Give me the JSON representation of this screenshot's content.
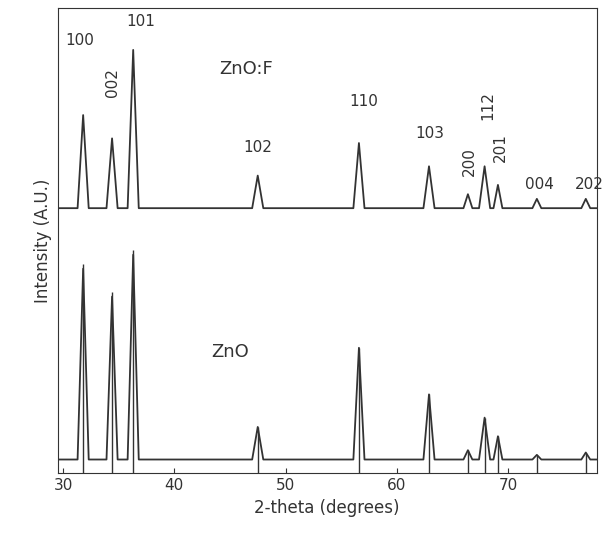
{
  "chart_data": {
    "type": "line",
    "x_label": "2-theta (degrees)",
    "y_label": "Intensity (A.U.)",
    "xlim": [
      29.5,
      78
    ],
    "xticks": [
      30,
      40,
      50,
      60,
      70
    ],
    "ylim": [
      0,
      100
    ],
    "yticks": [],
    "tick_labels": "x",
    "grid": false,
    "x": [
      29.5,
      31.3,
      31.8,
      32.3,
      33.9,
      34.4,
      34.9,
      35.8,
      36.3,
      36.8,
      47.0,
      47.5,
      48.0,
      56.1,
      56.6,
      57.1,
      62.4,
      62.9,
      63.4,
      66.0,
      66.4,
      66.8,
      67.4,
      67.9,
      68.4,
      68.7,
      69.1,
      69.5,
      72.2,
      72.6,
      73.0,
      76.6,
      77.0,
      77.4,
      78
    ],
    "series": [
      {
        "name": "ZnO:F",
        "color": "#333333",
        "values": [
          57,
          57,
          77,
          57,
          57,
          72,
          57,
          57,
          91,
          57,
          57,
          64,
          57,
          57,
          71,
          57,
          57,
          66,
          57,
          57,
          60,
          57,
          57,
          66,
          57,
          57,
          62,
          57,
          57,
          59,
          57,
          57,
          59,
          57,
          57
        ]
      },
      {
        "name": "ZnO",
        "color": "#333333",
        "values": [
          3,
          3,
          44,
          3,
          3,
          38,
          3,
          3,
          47,
          3,
          3,
          10,
          3,
          3,
          27,
          3,
          3,
          17,
          3,
          3,
          5,
          3,
          3,
          12,
          3,
          3,
          8,
          3,
          3,
          4,
          3,
          3,
          4.5,
          3,
          3
        ]
      }
    ],
    "reference_peaks": {
      "x": [
        31.8,
        34.4,
        36.3,
        47.5,
        56.6,
        62.9,
        66.4,
        67.9,
        69.1,
        72.6,
        77.0
      ],
      "heights": [
        45,
        39,
        48,
        10,
        27,
        17,
        5,
        12,
        8,
        4,
        4.5
      ],
      "color": "#333333"
    },
    "annotations": [
      {
        "text": "100",
        "x": 31.5,
        "y": 93
      },
      {
        "text": "002",
        "x": 34.4,
        "y": 84
      },
      {
        "text": "101",
        "x": 37.0,
        "y": 97
      },
      {
        "text": "102",
        "x": 47.5,
        "y": 70
      },
      {
        "text": "110",
        "x": 57.0,
        "y": 80
      },
      {
        "text": "103",
        "x": 63.0,
        "y": 73
      },
      {
        "text": "200",
        "x": 66.5,
        "y": 67
      },
      {
        "text": "112",
        "x": 68.2,
        "y": 79
      },
      {
        "text": "201",
        "x": 69.3,
        "y": 70
      },
      {
        "text": "004",
        "x": 72.8,
        "y": 62
      },
      {
        "text": "202",
        "x": 77.3,
        "y": 62
      },
      {
        "text": "ZnO:F",
        "x": 46.5,
        "y": 87
      },
      {
        "text": "ZnO",
        "x": 45.0,
        "y": 26
      }
    ]
  }
}
